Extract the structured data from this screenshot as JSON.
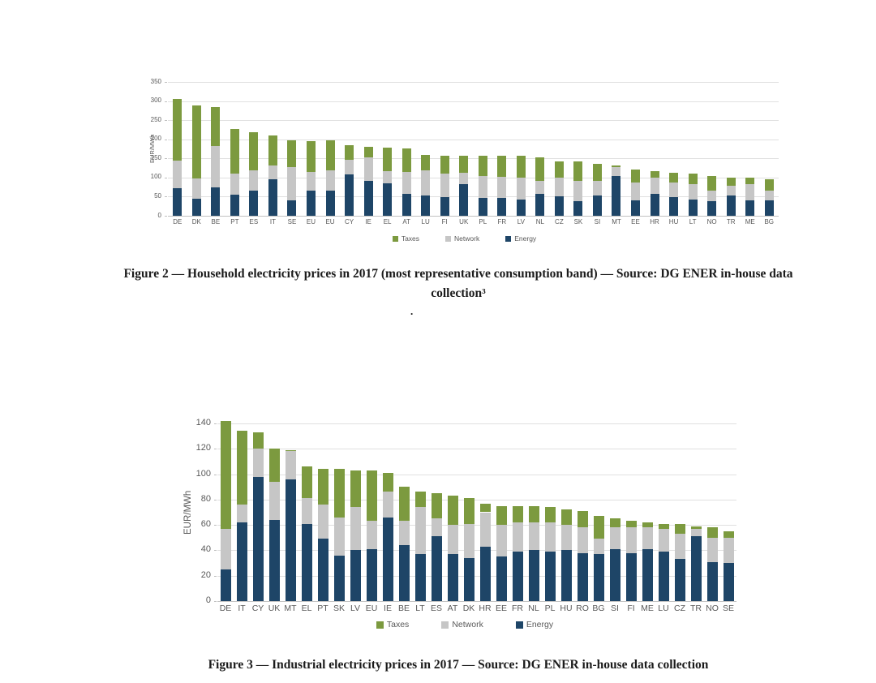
{
  "page": {
    "background": "#ffffff",
    "dot": "."
  },
  "colors": {
    "taxes": "#7c9a3f",
    "network": "#c6c6c6",
    "energy": "#1e4567",
    "gridline": "#e0e0e0",
    "tick_text": "#595959"
  },
  "figure2": {
    "caption": "Figure 2 — Household electricity prices in 2017 (most representative consumption band) — Source: DG ENER in-house data collection³"
  },
  "figure3": {
    "caption": "Figure 3 — Industrial electricity prices in 2017 — Source: DG ENER in-house data collection"
  },
  "chart_data": [
    {
      "type": "bar",
      "stacked": true,
      "title": "",
      "ylabel": "EUR/MWh",
      "xlabel": "",
      "ylim": [
        0,
        350
      ],
      "ytick_step": 50,
      "grid": true,
      "legend": [
        "Taxes",
        "Network",
        "Energy"
      ],
      "legend_position": "bottom",
      "categories": [
        "DE",
        "DK",
        "BE",
        "PT",
        "ES",
        "IT",
        "SE",
        "EU",
        "EU",
        "CY",
        "IE",
        "EL",
        "AT",
        "LU",
        "FI",
        "UK",
        "PL",
        "FR",
        "LV",
        "NL",
        "CZ",
        "SK",
        "SI",
        "MT",
        "EE",
        "HR",
        "HU",
        "LT",
        "NO",
        "TR",
        "ME",
        "BG"
      ],
      "series": [
        {
          "name": "Energy",
          "color": "#1e4567",
          "values": [
            72,
            45,
            74,
            55,
            66,
            95,
            40,
            65,
            66,
            108,
            92,
            85,
            57,
            54,
            49,
            83,
            46,
            47,
            43,
            57,
            50,
            38,
            52,
            103,
            40,
            57,
            48,
            43,
            38,
            53,
            40,
            40
          ]
        },
        {
          "name": "Network",
          "color": "#c6c6c6",
          "values": [
            72,
            53,
            108,
            55,
            52,
            37,
            87,
            50,
            53,
            38,
            61,
            32,
            57,
            65,
            61,
            29,
            58,
            55,
            57,
            35,
            50,
            53,
            40,
            24,
            48,
            43,
            40,
            39,
            28,
            26,
            43,
            25
          ]
        },
        {
          "name": "Taxes",
          "color": "#7c9a3f",
          "values": [
            161,
            191,
            103,
            118,
            100,
            78,
            70,
            81,
            78,
            39,
            28,
            62,
            62,
            41,
            48,
            46,
            53,
            56,
            57,
            61,
            43,
            51,
            44,
            5,
            32,
            17,
            25,
            28,
            38,
            21,
            17,
            30
          ]
        }
      ]
    },
    {
      "type": "bar",
      "stacked": true,
      "title": "",
      "ylabel": "EUR/MWh",
      "xlabel": "",
      "ylim": [
        0,
        140
      ],
      "ytick_step": 20,
      "grid": true,
      "legend": [
        "Taxes",
        "Network",
        "Energy"
      ],
      "legend_position": "bottom",
      "categories": [
        "DE",
        "IT",
        "CY",
        "UK",
        "MT",
        "EL",
        "PT",
        "SK",
        "LV",
        "EU",
        "IE",
        "BE",
        "LT",
        "ES",
        "AT",
        "DK",
        "HR",
        "EE",
        "FR",
        "NL",
        "PL",
        "HU",
        "RO",
        "BG",
        "SI",
        "FI",
        "ME",
        "LU",
        "CZ",
        "TR",
        "NO",
        "SE"
      ],
      "series": [
        {
          "name": "Energy",
          "color": "#1e4567",
          "values": [
            25,
            62,
            98,
            64,
            96,
            61,
            49,
            36,
            40,
            41,
            66,
            44,
            37,
            51,
            37,
            34,
            43,
            35,
            39,
            40,
            39,
            40,
            38,
            37,
            41,
            38,
            41,
            39,
            33,
            51,
            31,
            30
          ]
        },
        {
          "name": "Network",
          "color": "#c6c6c6",
          "values": [
            32,
            14,
            22,
            30,
            22,
            20,
            27,
            30,
            34,
            22,
            20,
            19,
            37,
            14,
            23,
            27,
            27,
            25,
            23,
            22,
            23,
            20,
            20,
            12,
            17,
            20,
            17,
            18,
            20,
            6,
            19,
            20
          ]
        },
        {
          "name": "Taxes",
          "color": "#7c9a3f",
          "values": [
            85,
            58,
            13,
            26,
            1,
            25,
            28,
            38,
            29,
            40,
            15,
            27,
            12,
            20,
            23,
            20,
            7,
            15,
            13,
            13,
            12,
            12,
            13,
            18,
            7,
            5,
            4,
            4,
            8,
            2,
            8,
            5
          ]
        }
      ]
    }
  ]
}
